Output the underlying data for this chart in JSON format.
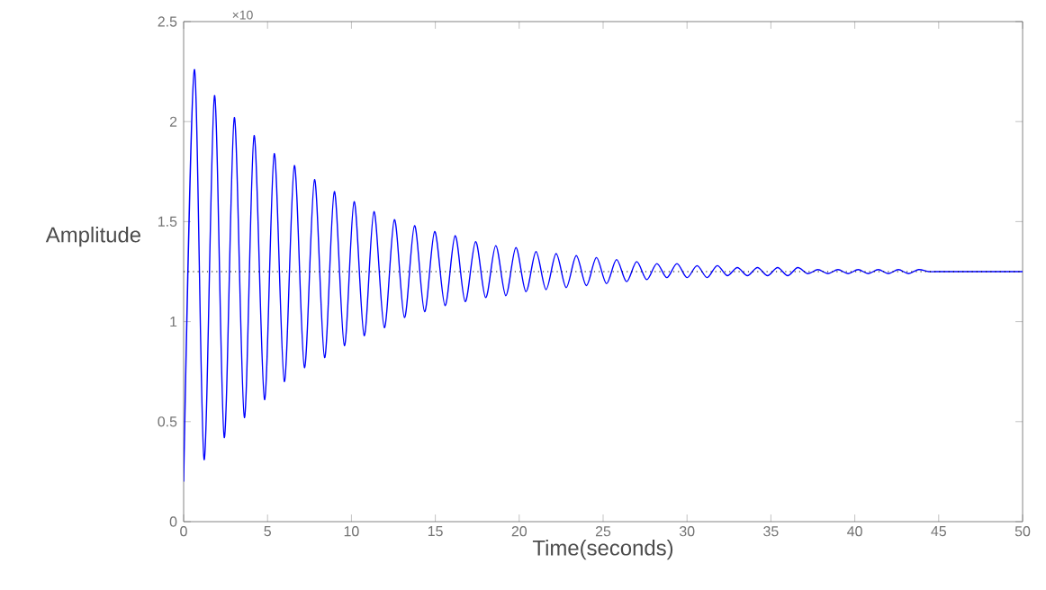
{
  "chart_data": {
    "type": "line",
    "xlabel": "Time(seconds)",
    "ylabel": "Amplitude",
    "annotations": [
      "×10"
    ],
    "xlim": [
      0,
      50
    ],
    "ylim": [
      0,
      2.5
    ],
    "xticks": [
      0,
      5,
      10,
      15,
      20,
      25,
      30,
      35,
      40,
      45,
      50
    ],
    "yticks": [
      0,
      0.5,
      1,
      1.5,
      2,
      2.5
    ],
    "ref_lines": [
      {
        "axis": "y",
        "value": 1.25,
        "color": "#000000",
        "line_style": "dotted"
      }
    ],
    "series": [
      {
        "color": "#0000ff",
        "line_style": "solid",
        "x": [
          0,
          0.64,
          1.22,
          1.84,
          2.42,
          3.02,
          3.62,
          4.2,
          4.82,
          5.4,
          6.0,
          6.6,
          7.2,
          7.8,
          8.4,
          8.98,
          9.58,
          10.16,
          10.76,
          11.34,
          11.96,
          12.56,
          13.16,
          13.76,
          14.36,
          14.96,
          15.58,
          16.18,
          16.78,
          17.4,
          18.0,
          18.6,
          19.2,
          19.8,
          20.4,
          21.0,
          21.6,
          22.2,
          22.8,
          23.4,
          24.0,
          24.6,
          25.2,
          25.8,
          26.4,
          27.0,
          27.6,
          28.2,
          28.8,
          29.4,
          30.0,
          30.6,
          31.2,
          31.8,
          32.4,
          33.0,
          33.6,
          34.2,
          34.8,
          35.4,
          36.0,
          36.6,
          37.2,
          37.8,
          38.4,
          39.0,
          39.6,
          40.2,
          40.8,
          41.4,
          42.0,
          42.6,
          43.2,
          43.8,
          44.4,
          45.0,
          45.6,
          46.2,
          46.8,
          47.4,
          48.0,
          48.6,
          49.2,
          49.8,
          50
        ],
        "values": [
          0.2,
          2.26,
          0.31,
          2.13,
          0.42,
          2.02,
          0.52,
          1.93,
          0.61,
          1.84,
          0.7,
          1.78,
          0.77,
          1.71,
          0.82,
          1.65,
          0.88,
          1.6,
          0.93,
          1.55,
          0.97,
          1.51,
          1.02,
          1.48,
          1.05,
          1.45,
          1.08,
          1.43,
          1.1,
          1.4,
          1.12,
          1.38,
          1.13,
          1.37,
          1.15,
          1.35,
          1.16,
          1.34,
          1.17,
          1.33,
          1.18,
          1.32,
          1.19,
          1.31,
          1.2,
          1.3,
          1.21,
          1.29,
          1.22,
          1.29,
          1.22,
          1.28,
          1.22,
          1.28,
          1.23,
          1.27,
          1.23,
          1.27,
          1.23,
          1.27,
          1.23,
          1.27,
          1.24,
          1.26,
          1.24,
          1.26,
          1.24,
          1.26,
          1.24,
          1.26,
          1.24,
          1.26,
          1.24,
          1.26,
          1.25,
          1.25,
          1.25,
          1.25,
          1.25,
          1.25,
          1.25,
          1.25,
          1.25,
          1.25,
          1.25
        ]
      }
    ]
  }
}
